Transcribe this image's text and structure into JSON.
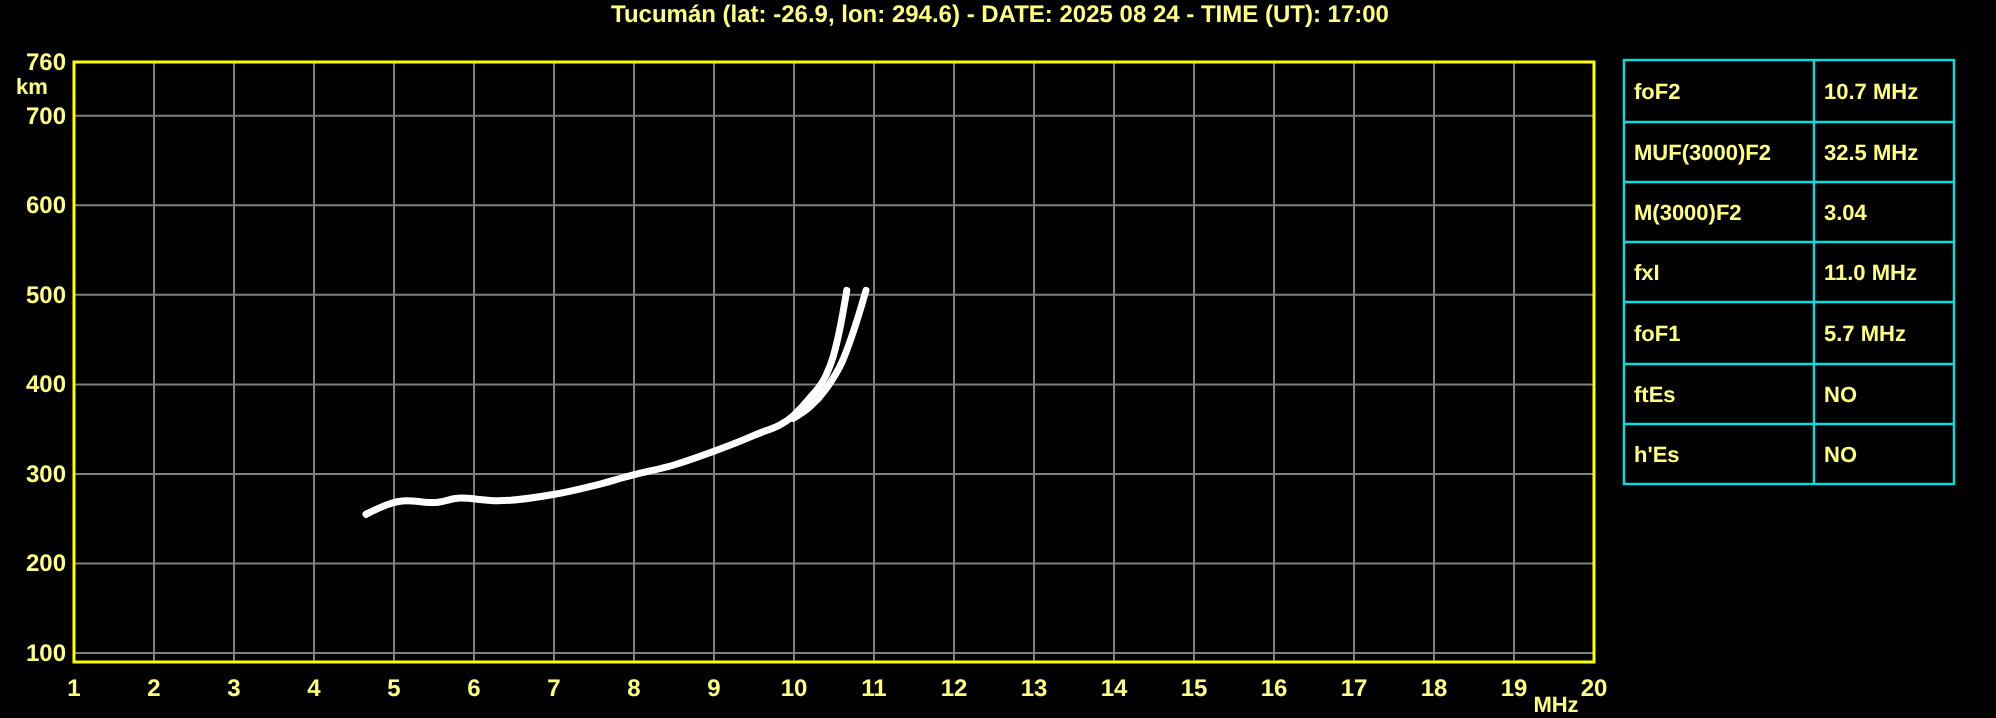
{
  "chart_data": [
    {
      "type": "line",
      "title": "Tucumán (lat: -26.9, lon: 294.6) - DATE: 2025 08 24 - TIME (UT): 17:00",
      "xlabel": "MHz",
      "ylabel": "km",
      "xlim": [
        1,
        20
      ],
      "xticks": [
        1,
        2,
        3,
        4,
        5,
        6,
        7,
        8,
        9,
        10,
        11,
        12,
        13,
        14,
        15,
        16,
        17,
        18,
        19,
        20
      ],
      "ylim": [
        90,
        760
      ],
      "yticks": [
        100,
        200,
        300,
        400,
        500,
        600,
        700,
        760
      ],
      "grid": true,
      "marker": "none",
      "line_style": "solid",
      "series": [
        {
          "color": "#ffffff",
          "x": [
            4.65,
            5.16,
            5.5,
            5.83,
            6.3,
            6.99,
            7.5,
            7.99,
            8.5,
            8.99,
            9.5,
            9.99,
            10.2,
            10.4,
            10.49,
            10.58,
            10.66
          ],
          "values": [
            255,
            270,
            268,
            273,
            270,
            277,
            287,
            299,
            310,
            325,
            343,
            365,
            385,
            410,
            431,
            465,
            505
          ]
        },
        {
          "color": "#ffffff",
          "x": [
            9.99,
            10.2,
            10.4,
            10.6,
            10.8,
            10.9
          ],
          "values": [
            362,
            375,
            395,
            425,
            475,
            505
          ]
        }
      ]
    },
    {
      "type": "other",
      "annotations": [
        "foF2",
        "10.7 MHz",
        "MUF(3000)F2",
        "32.5 MHz",
        "M(3000)F2",
        "3.04",
        "fxI",
        "11.0 MHz",
        "foF1",
        "5.7 MHz",
        "ftEs",
        "NO",
        "h'Es",
        "NO"
      ]
    }
  ]
}
